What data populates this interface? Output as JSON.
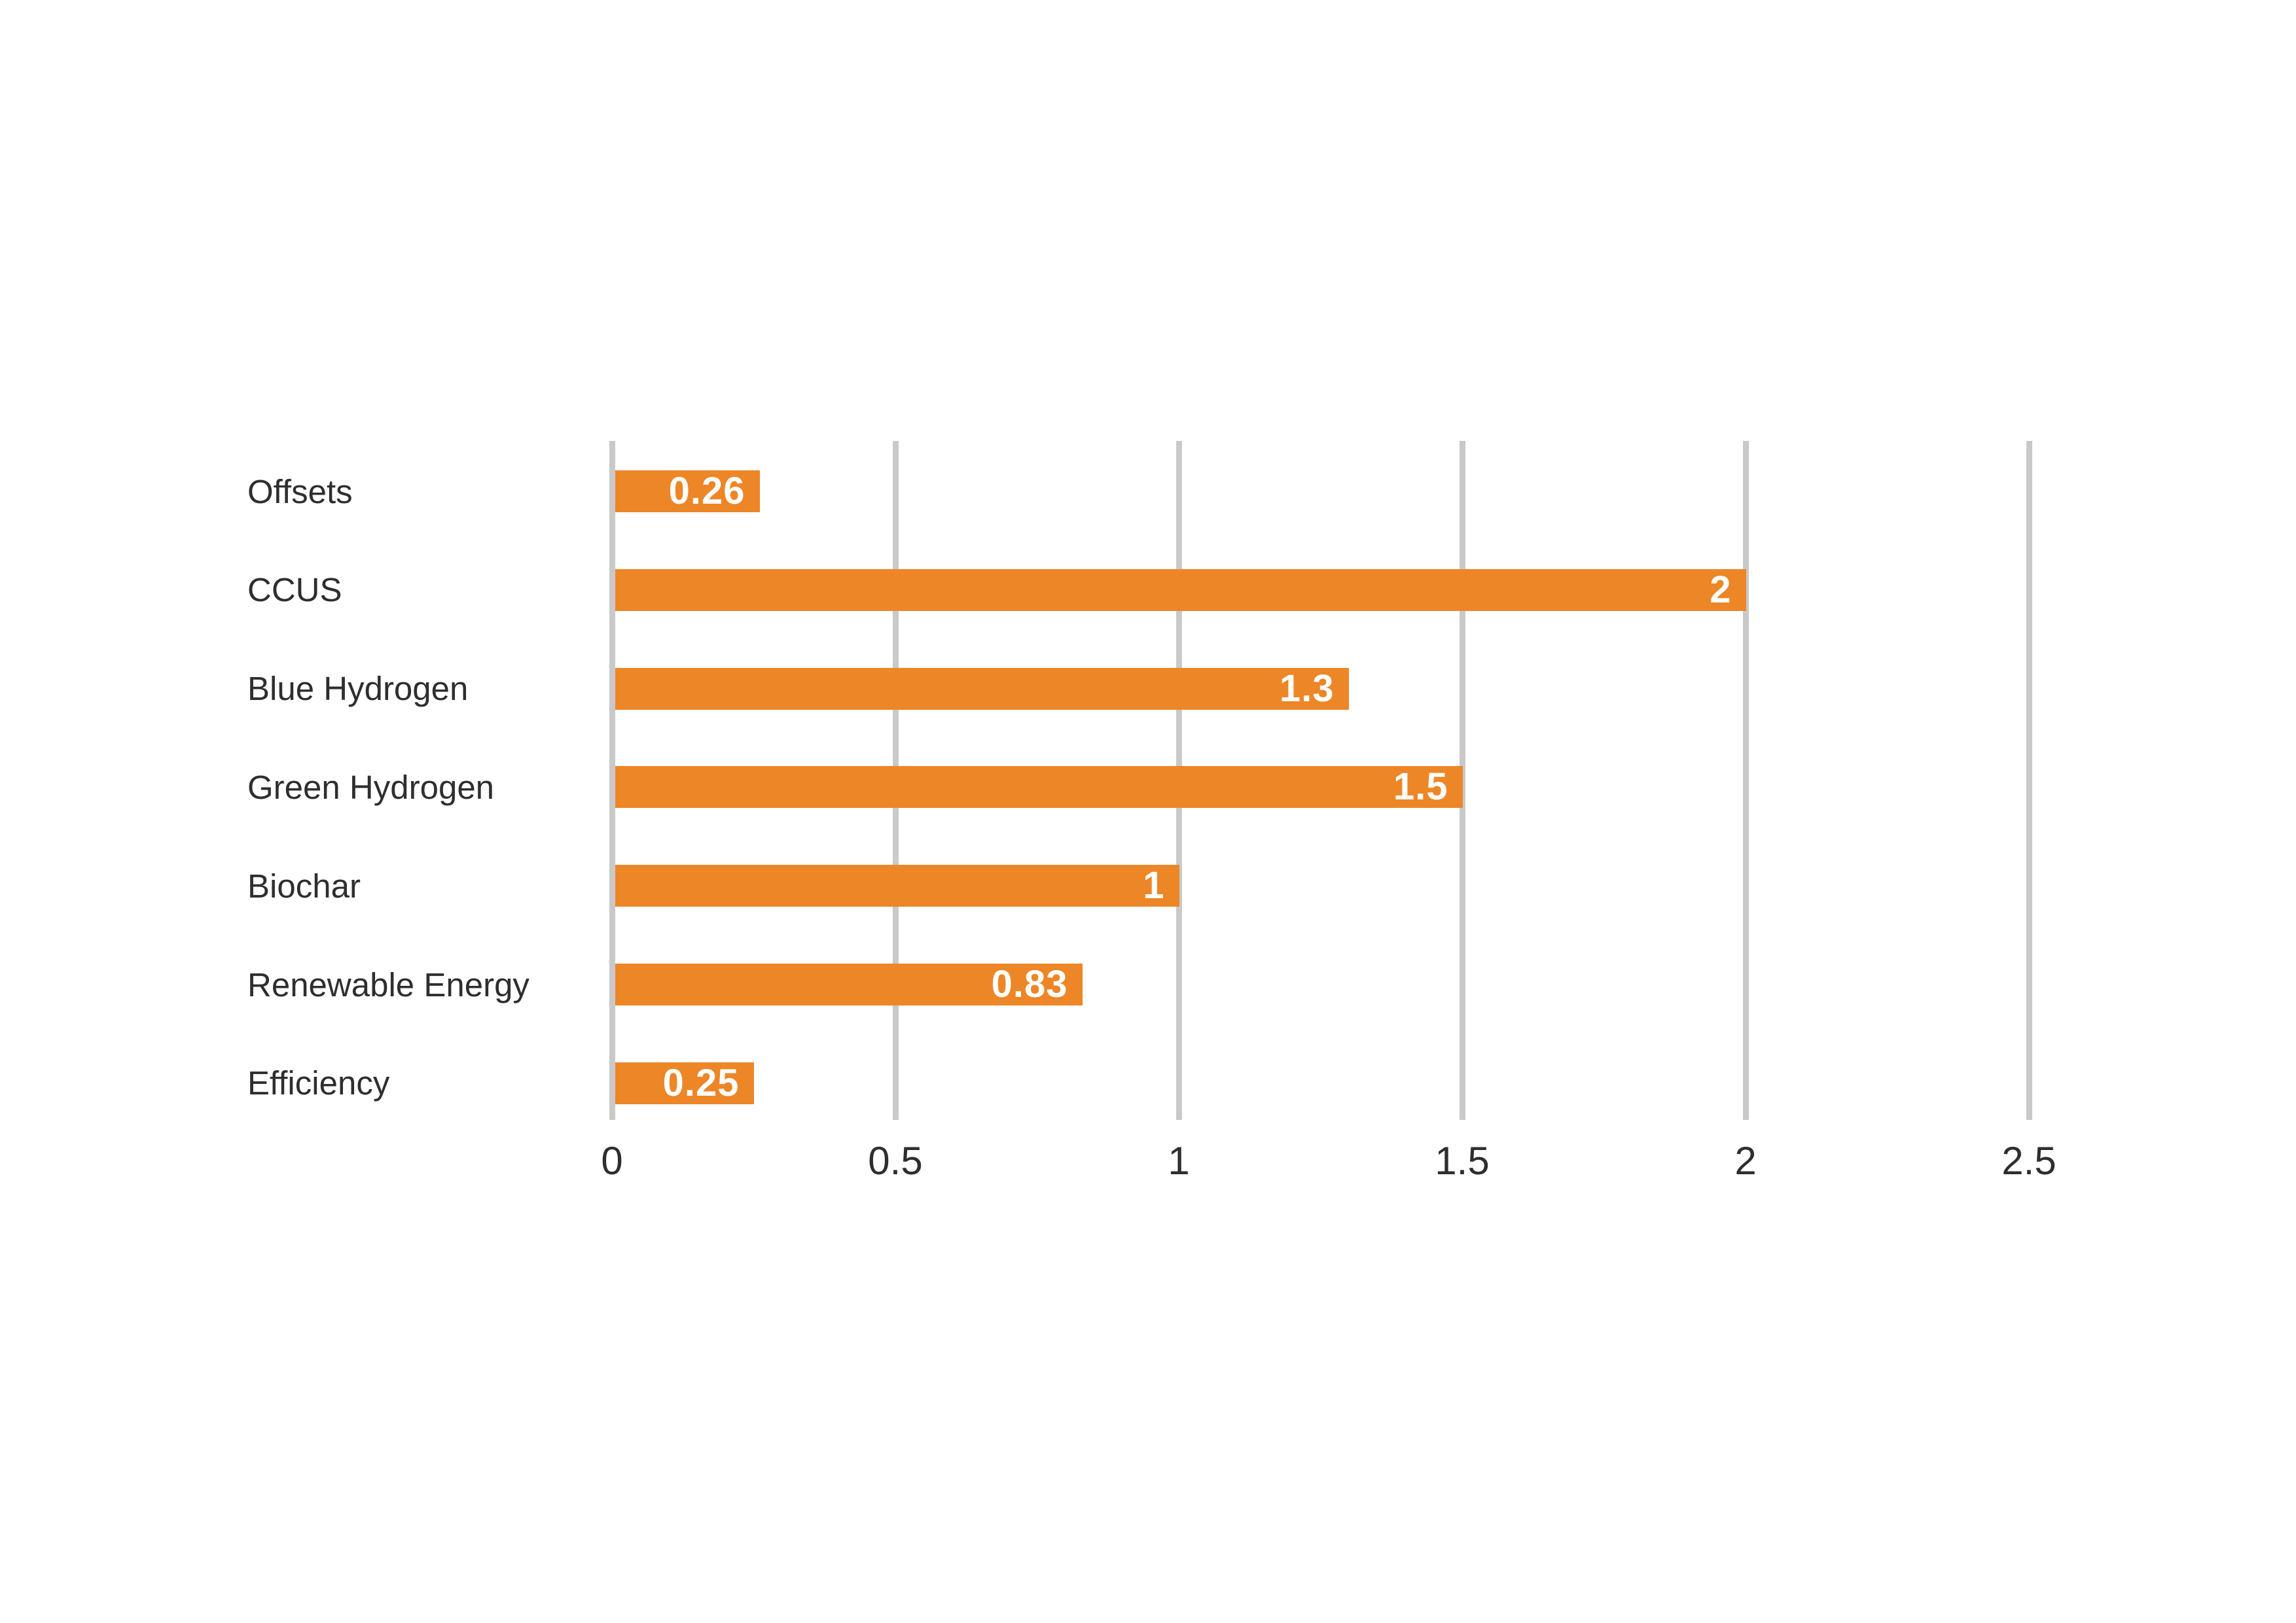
{
  "chart_data": {
    "type": "bar",
    "orientation": "horizontal",
    "title": "",
    "xlabel": "",
    "ylabel": "",
    "categories": [
      "Offsets",
      "CCUS",
      "Blue Hydrogen",
      "Green Hydrogen",
      "Biochar",
      "Renewable Energy",
      "Efficiency"
    ],
    "values": [
      0.26,
      2,
      1.3,
      1.5,
      1,
      0.83,
      0.25
    ],
    "value_labels": [
      "0.26",
      "2",
      "1.3",
      "1.5",
      "1",
      "0.83",
      "0.25"
    ],
    "x_ticks": [
      "0",
      "0.5",
      "1",
      "1.5",
      "2",
      "2.5"
    ],
    "x_tick_values": [
      0,
      0.5,
      1,
      1.5,
      2,
      2.5
    ],
    "xlim": [
      0,
      2.5
    ],
    "grid": "vertical-gridlines-on",
    "legend": "none",
    "value_label_position": "inside-end",
    "colors": {
      "bar": "#ed8626",
      "gridline": "#c9c9c9",
      "label_text": "#2e2e2e",
      "tick_text": "#2e2e2e",
      "value_text": "#ffffff",
      "background": "#ffffff"
    }
  }
}
